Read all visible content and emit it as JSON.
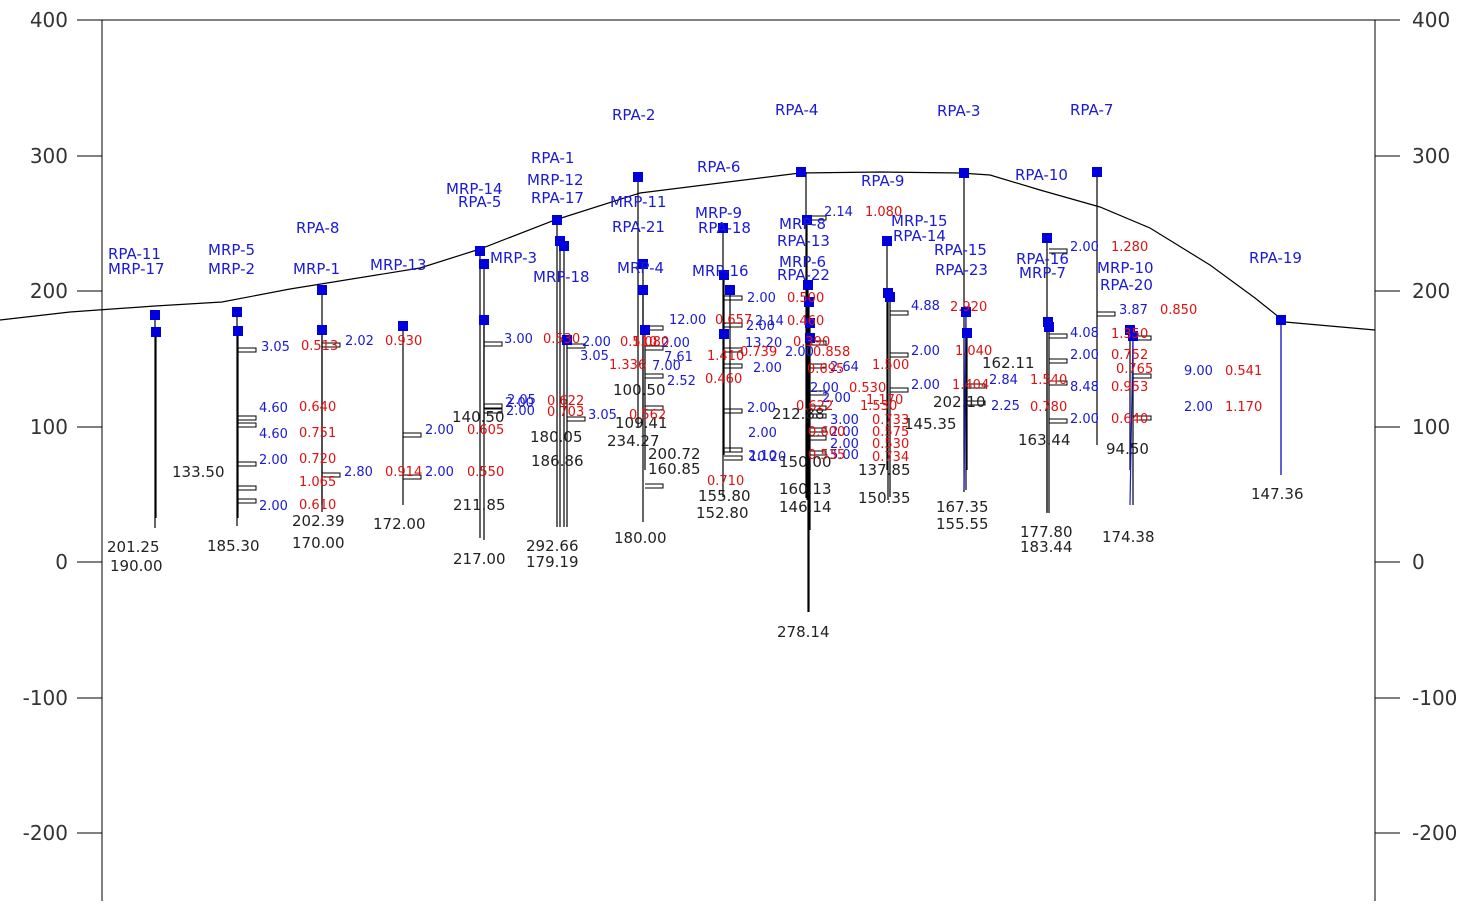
{
  "colors": {
    "frame": "#000000",
    "name": "#1a1ad6",
    "blue_value": "#1a1ad6",
    "red_value": "#e01010",
    "depth": "#222222",
    "marker": "#0000dd"
  },
  "axis": {
    "left_ticks": [
      "400",
      "300",
      "200",
      "100",
      "0",
      "-100",
      "-200"
    ],
    "right_ticks": [
      "400",
      "300",
      "200",
      "100",
      "0",
      "-100",
      "-200"
    ]
  },
  "names": [
    "RPA-11",
    "MRP-17",
    "MRP-5",
    "MRP-2",
    "RPA-8",
    "MRP-1",
    "MRP-13",
    "MRP-14",
    "RPA-5",
    "MRP-3",
    "RPA-1",
    "MRP-12",
    "RPA-17",
    "MRP-18",
    "RPA-2",
    "MRP-11",
    "RPA-21",
    "MRP-4",
    "RPA-6",
    "MRP-9",
    "RPA-18",
    "MRP-16",
    "RPA-4",
    "MRP-8",
    "RPA-13",
    "MRP-6",
    "RPA-22",
    "RPA-9",
    "MRP-15",
    "RPA-14",
    "RPA-3",
    "RPA-15",
    "RPA-23",
    "RPA-10",
    "RPA-16",
    "MRP-7",
    "RPA-7",
    "MRP-10",
    "RPA-20",
    "RPA-19"
  ],
  "depths": [
    "201.25",
    "190.00",
    "133.50",
    "185.30",
    "202.39",
    "170.00",
    "172.00",
    "140.50",
    "211.85",
    "217.00",
    "180.05",
    "186.86",
    "292.66",
    "179.19",
    "100.50",
    "109.41",
    "234.27",
    "180.00",
    "200.72",
    "160.85",
    "155.80",
    "152.80",
    "212.88",
    "150.00",
    "160.13",
    "146.14",
    "278.14",
    "145.35",
    "137.85",
    "150.35",
    "162.11",
    "202.10",
    "167.35",
    "155.55",
    "163.44",
    "177.80",
    "183.44",
    "94.50",
    "174.38",
    "147.36"
  ],
  "blue_values": [
    "3.05",
    "2.02",
    "4.60",
    "4.60",
    "2.00",
    "2.80",
    "2.00",
    "2.00",
    "2.00",
    "2.00",
    "3.00",
    "2.05",
    "2.00",
    "3.05",
    "2.00",
    "3.05",
    "7.00",
    "2.00",
    "12.00",
    "2.00",
    "7.61",
    "2.52",
    "2.00",
    "2.00",
    "2.14",
    "13.20",
    "2.00",
    "2.00",
    "2.10",
    "10.20",
    "2.14",
    "2.00",
    "2.64",
    "2.00",
    "2.00",
    "3.00",
    "2.00",
    "2.00",
    "5.00",
    "4.88",
    "2.00",
    "2.00",
    "2.84",
    "2.25",
    "2.00",
    "4.08",
    "2.00",
    "8.48",
    "2.00",
    "3.87",
    "9.00",
    "2.00"
  ],
  "red_values": [
    "0.513",
    "0.930",
    "0.640",
    "0.751",
    "0.720",
    "1.065",
    "0.610",
    "0.914",
    "0.605",
    "0.550",
    "0.530",
    "0.622",
    "0.703",
    "0.562",
    "0.510",
    "1.336",
    "1.080",
    "1.410",
    "0.460",
    "0.657",
    "0.739",
    "0.710",
    "1.080",
    "0.500",
    "0.460",
    "0.390",
    "0.858",
    "0.695",
    "0.622",
    "1.170",
    "0.530",
    "0.733",
    "0.600",
    "0.575",
    "0.530",
    "0.535",
    "0.734",
    "1.500",
    "1.530",
    "2.920",
    "1.040",
    "1.404",
    "1.540",
    "0.780",
    "1.280",
    "1.350",
    "0.752",
    "0.765",
    "0.953",
    "0.640",
    "0.850",
    "0.541",
    "1.170"
  ]
}
